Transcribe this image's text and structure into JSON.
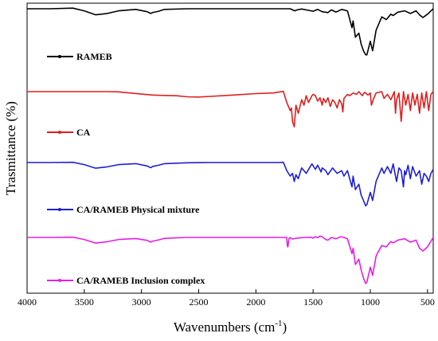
{
  "chart_data": {
    "type": "line",
    "title": "",
    "xlabel": "Wavenumbers (cm",
    "xlabel_sup": "-1",
    "xlabel_suffix": ")",
    "ylabel": "Trasmittance (%)",
    "xlim": [
      4000,
      450
    ],
    "x_reversed": true,
    "x_ticks": [
      4000,
      3500,
      3000,
      2500,
      2000,
      1500,
      1000,
      500
    ],
    "x_tick_labels": [
      "4000",
      "3500",
      "3000",
      "2500",
      "2000",
      "1500",
      "1000",
      "500"
    ],
    "y_ticks": "none",
    "legend_placement": "inline below each trace",
    "series": [
      {
        "name": "RAMEB",
        "color": "#000000",
        "offset": 0,
        "x": [
          4000,
          3800,
          3600,
          3500,
          3400,
          3300,
          3200,
          3050,
          2950,
          2920,
          2900,
          2850,
          2800,
          2600,
          2400,
          2200,
          2000,
          1800,
          1700,
          1660,
          1640,
          1600,
          1500,
          1460,
          1420,
          1370,
          1340,
          1300,
          1250,
          1200,
          1160,
          1150,
          1130,
          1100,
          1080,
          1060,
          1040,
          1030,
          1000,
          980,
          950,
          940,
          900,
          860,
          820,
          800,
          760,
          700,
          650,
          600,
          570,
          540,
          500,
          450
        ],
        "y": [
          96,
          96,
          96.5,
          94.5,
          91.5,
          92.5,
          94.5,
          95.5,
          93.8,
          92.5,
          93.3,
          94.2,
          95.5,
          96,
          96,
          96,
          96,
          96,
          96,
          94.5,
          95.2,
          95.8,
          94.2,
          95.5,
          93.8,
          93.2,
          95.2,
          93.6,
          95.5,
          94.5,
          82,
          87,
          75,
          78,
          70,
          65,
          62,
          62,
          72,
          65,
          80,
          82,
          90,
          88,
          92,
          91,
          93.5,
          94.5,
          92.5,
          94.5,
          91.5,
          89.5,
          92,
          96
        ]
      },
      {
        "name": "CA",
        "color": "#e01f1f",
        "offset": -104,
        "x": [
          4000,
          3800,
          3500,
          3300,
          3200,
          3100,
          3000,
          2900,
          2800,
          2700,
          2600,
          2500,
          2400,
          2200,
          2000,
          1850,
          1760,
          1730,
          1700,
          1690,
          1680,
          1665,
          1650,
          1630,
          1600,
          1580,
          1560,
          1540,
          1510,
          1500,
          1480,
          1460,
          1440,
          1420,
          1410,
          1390,
          1370,
          1350,
          1330,
          1310,
          1290,
          1270,
          1250,
          1240,
          1230,
          1200,
          1180,
          1150,
          1120,
          1100,
          1070,
          1050,
          1020,
          1000,
          990,
          970,
          950,
          900,
          880,
          850,
          820,
          790,
          780,
          770,
          750,
          730,
          710,
          690,
          670,
          650,
          630,
          610,
          590,
          570,
          550,
          530,
          510,
          490,
          470,
          450
        ],
        "y": [
          96,
          96,
          96,
          96,
          95.8,
          95,
          94.2,
          93.5,
          93.2,
          93,
          92.2,
          92,
          92.5,
          93.5,
          94.5,
          95,
          96.2,
          88,
          82,
          84,
          74,
          70,
          86,
          80,
          90,
          86,
          93,
          88,
          93,
          94,
          93,
          89,
          91.5,
          86,
          91,
          88,
          91.5,
          85,
          90,
          88,
          84,
          90,
          87,
          81,
          91,
          94,
          93,
          95,
          94,
          96,
          93,
          95.5,
          93.5,
          95,
          86,
          91,
          95,
          96,
          91,
          94,
          90,
          96,
          80,
          90,
          95,
          74,
          96,
          86,
          94,
          82,
          95,
          86,
          94,
          80,
          95,
          84,
          96,
          82,
          94,
          96
        ]
      },
      {
        "name": "CA/RAMEB Physical mixture",
        "color": "#1f1fd4",
        "offset": -193,
        "x": [
          4000,
          3800,
          3600,
          3500,
          3400,
          3300,
          3200,
          3050,
          2950,
          2920,
          2900,
          2850,
          2800,
          2600,
          2400,
          2200,
          2000,
          1800,
          1760,
          1730,
          1700,
          1680,
          1665,
          1650,
          1630,
          1600,
          1560,
          1510,
          1480,
          1460,
          1430,
          1420,
          1390,
          1370,
          1330,
          1290,
          1250,
          1230,
          1200,
          1160,
          1150,
          1130,
          1100,
          1080,
          1060,
          1040,
          1030,
          1000,
          980,
          950,
          900,
          880,
          850,
          820,
          800,
          780,
          770,
          750,
          730,
          710,
          700,
          690,
          670,
          650,
          630,
          600,
          570,
          550,
          530,
          510,
          490,
          470,
          450
        ],
        "y": [
          96,
          96,
          96.2,
          94.5,
          91.8,
          92.8,
          94.5,
          95.2,
          93.5,
          92.2,
          93.2,
          94,
          95.2,
          95.8,
          96,
          96,
          96,
          96,
          96.2,
          90,
          86,
          88,
          82,
          87,
          84,
          92,
          88,
          95,
          91,
          94,
          89,
          92,
          90,
          87,
          92,
          88,
          90,
          86,
          90,
          78,
          86,
          76,
          80,
          72,
          68,
          64,
          65,
          74,
          68,
          82,
          92,
          88,
          93,
          88,
          95,
          86,
          82,
          92,
          90,
          78,
          90,
          87,
          94,
          84,
          93,
          86,
          90,
          80,
          88,
          86,
          82,
          88,
          91
        ]
      },
      {
        "name": "CA/RAMEB Inclusion complex",
        "color": "#e61ee6",
        "offset": -287,
        "x": [
          4000,
          3800,
          3600,
          3500,
          3400,
          3300,
          3200,
          3050,
          2950,
          2920,
          2900,
          2850,
          2800,
          2600,
          2400,
          2200,
          2000,
          1800,
          1740,
          1730,
          1725,
          1720,
          1710,
          1700,
          1680,
          1640,
          1600,
          1560,
          1520,
          1500,
          1480,
          1460,
          1440,
          1420,
          1390,
          1370,
          1340,
          1300,
          1260,
          1230,
          1200,
          1160,
          1150,
          1130,
          1100,
          1080,
          1060,
          1040,
          1030,
          1000,
          980,
          950,
          940,
          900,
          860,
          820,
          800,
          760,
          700,
          650,
          600,
          570,
          540,
          500,
          450
        ],
        "y": [
          96,
          96,
          96.2,
          94.5,
          91.8,
          92.8,
          94.5,
          95.2,
          93.8,
          92.5,
          93.3,
          94.2,
          95.3,
          96,
          96,
          96,
          96,
          96,
          96,
          95.8,
          90,
          89,
          95.5,
          95.8,
          94.8,
          95.5,
          95.8,
          96,
          96.2,
          95.5,
          96.5,
          95.8,
          97,
          96.5,
          94.5,
          94,
          96,
          95,
          96.5,
          96,
          95,
          84,
          88,
          76,
          80,
          72,
          66,
          62,
          63,
          74,
          68,
          82,
          84,
          90,
          89,
          93,
          92,
          94,
          95,
          92.5,
          94,
          88,
          86,
          89,
          96
        ]
      }
    ]
  }
}
